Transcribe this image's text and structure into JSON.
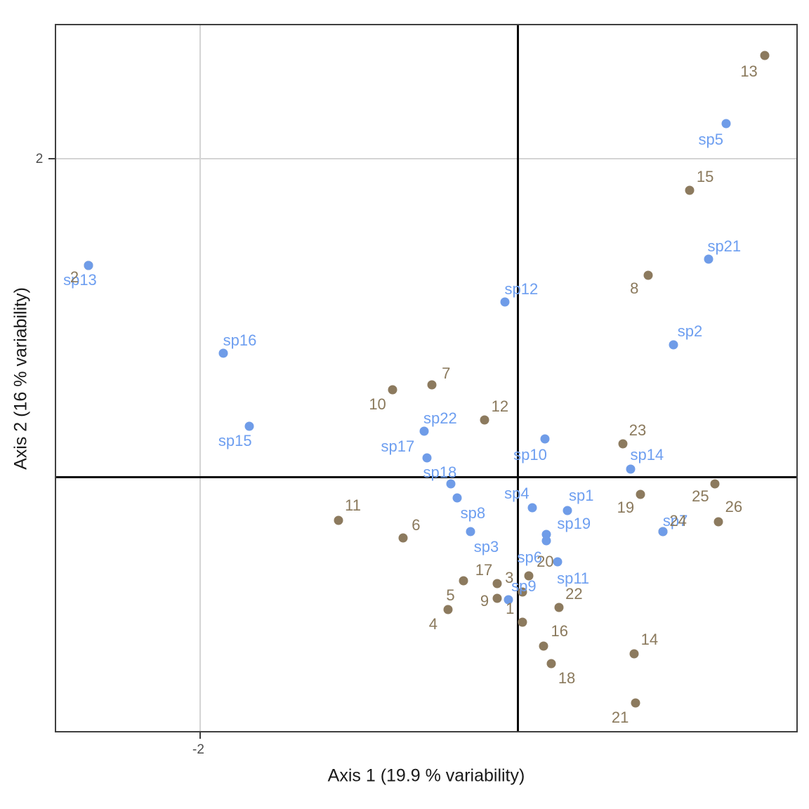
{
  "axes": {
    "x_title": "Axis 1 (19.9 % variability)",
    "y_title": "Axis 2 (16 % variability)",
    "x_ticks": [
      {
        "label": "-2",
        "value": -2
      }
    ],
    "y_ticks": [
      {
        "label": "2",
        "value": 2
      }
    ]
  },
  "colors": {
    "site": "#8C7A5E",
    "site_text": "#8A795C",
    "species": "#6F9CE8",
    "species_text": "#6D9EF0",
    "gridline": "#d4d4d4",
    "crosshair": "#0a0a0a",
    "panel_border": "#3f3f3f"
  },
  "chart_data": {
    "type": "scatter",
    "title": "",
    "xlabel": "Axis 1 (19.9 % variability)",
    "ylabel": "Axis 2 (16 % variability)",
    "xlim": [
      -2.91,
      1.76
    ],
    "ylim": [
      -1.6,
      2.85
    ],
    "grid": {
      "x_gridlines": [
        -2
      ],
      "y_gridlines": [
        2
      ],
      "origin_crosshair": true
    },
    "legend": "none",
    "series": [
      {
        "name": "sites",
        "color": "#8C7A5E",
        "points": [
          {
            "label": "1",
            "x": 0.03,
            "y": -0.91,
            "ldx": -18,
            "ldy": -19
          },
          {
            "label": "2",
            "x": -2.7,
            "y": 1.33,
            "ldx": -20,
            "ldy": 17
          },
          {
            "label": "3",
            "x": 0.03,
            "y": -0.72,
            "ldx": -19,
            "ldy": -20
          },
          {
            "label": "4",
            "x": -0.44,
            "y": -0.83,
            "ldx": -21,
            "ldy": 21
          },
          {
            "label": "5",
            "x": -0.34,
            "y": -0.65,
            "ldx": -19,
            "ldy": 21
          },
          {
            "label": "6",
            "x": -0.72,
            "y": -0.38,
            "ldx": 18,
            "ldy": -18
          },
          {
            "label": "7",
            "x": -0.54,
            "y": 0.58,
            "ldx": 20,
            "ldy": -16
          },
          {
            "label": "8",
            "x": 0.82,
            "y": 1.27,
            "ldx": -20,
            "ldy": 19
          },
          {
            "label": "9",
            "x": -0.13,
            "y": -0.76,
            "ldx": -18,
            "ldy": 4
          },
          {
            "label": "10",
            "x": -0.79,
            "y": 0.55,
            "ldx": -21,
            "ldy": 21
          },
          {
            "label": "11",
            "x": -1.13,
            "y": -0.27,
            "ldx": 21,
            "ldy": -21
          },
          {
            "label": "12",
            "x": -0.21,
            "y": 0.36,
            "ldx": 22,
            "ldy": -19
          },
          {
            "label": "13",
            "x": 1.55,
            "y": 2.65,
            "ldx": -22,
            "ldy": 23
          },
          {
            "label": "14",
            "x": 0.73,
            "y": -1.11,
            "ldx": 22,
            "ldy": -20
          },
          {
            "label": "15",
            "x": 1.08,
            "y": 1.8,
            "ldx": 22,
            "ldy": -19
          },
          {
            "label": "16",
            "x": 0.16,
            "y": -1.06,
            "ldx": 23,
            "ldy": -21
          },
          {
            "label": "17",
            "x": -0.13,
            "y": -0.67,
            "ldx": -19,
            "ldy": -19
          },
          {
            "label": "18",
            "x": 0.21,
            "y": -1.17,
            "ldx": 22,
            "ldy": 21
          },
          {
            "label": "19",
            "x": 0.77,
            "y": -0.11,
            "ldx": -21,
            "ldy": 19
          },
          {
            "label": "20",
            "x": 0.07,
            "y": -0.62,
            "ldx": 23,
            "ldy": -20
          },
          {
            "label": "21",
            "x": 0.74,
            "y": -1.42,
            "ldx": -22,
            "ldy": 21
          },
          {
            "label": "22",
            "x": 0.26,
            "y": -0.82,
            "ldx": 21,
            "ldy": -19
          },
          {
            "label": "23",
            "x": 0.66,
            "y": 0.21,
            "ldx": 21,
            "ldy": -19
          },
          {
            "label": "24",
            "x": 0.91,
            "y": -0.34,
            "ldx": 22,
            "ldy": -15
          },
          {
            "label": "25",
            "x": 1.24,
            "y": -0.04,
            "ldx": -21,
            "ldy": 18
          },
          {
            "label": "26",
            "x": 1.26,
            "y": -0.28,
            "ldx": 22,
            "ldy": -21
          }
        ]
      },
      {
        "name": "species",
        "color": "#6F9CE8",
        "points": [
          {
            "label": "sp1",
            "x": 0.31,
            "y": -0.21,
            "ldx": 20,
            "ldy": -21
          },
          {
            "label": "sp2",
            "x": 0.98,
            "y": 0.83,
            "ldx": 23,
            "ldy": -19
          },
          {
            "label": "sp3",
            "x": -0.3,
            "y": -0.34,
            "ldx": 23,
            "ldy": 22
          },
          {
            "label": "sp4",
            "x": 0.09,
            "y": -0.19,
            "ldx": -22,
            "ldy": -20
          },
          {
            "label": "sp5",
            "x": 1.31,
            "y": 2.22,
            "ldx": -22,
            "ldy": 23
          },
          {
            "label": "sp6",
            "x": 0.18,
            "y": -0.4,
            "ldx": -24,
            "ldy": 24
          },
          {
            "label": "sp7",
            "x": 0.91,
            "y": -0.34,
            "ldx": 18,
            "ldy": -15
          },
          {
            "label": "sp8",
            "x": -0.38,
            "y": -0.13,
            "ldx": 22,
            "ldy": 22
          },
          {
            "label": "sp9",
            "x": -0.06,
            "y": -0.77,
            "ldx": 22,
            "ldy": -19
          },
          {
            "label": "sp10",
            "x": 0.17,
            "y": 0.24,
            "ldx": -21,
            "ldy": 23
          },
          {
            "label": "sp11",
            "x": 0.25,
            "y": -0.53,
            "ldx": 22,
            "ldy": 24
          },
          {
            "label": "sp12",
            "x": -0.08,
            "y": 1.1,
            "ldx": 23,
            "ldy": -18
          },
          {
            "label": "sp13",
            "x": -2.7,
            "y": 1.33,
            "ldx": -12,
            "ldy": 21
          },
          {
            "label": "sp14",
            "x": 0.71,
            "y": 0.05,
            "ldx": 23,
            "ldy": -20
          },
          {
            "label": "sp15",
            "x": -1.69,
            "y": 0.32,
            "ldx": -20,
            "ldy": 21
          },
          {
            "label": "sp16",
            "x": -1.85,
            "y": 0.78,
            "ldx": 23,
            "ldy": -18
          },
          {
            "label": "sp17",
            "x": -0.57,
            "y": 0.12,
            "ldx": -42,
            "ldy": -16
          },
          {
            "label": "sp18",
            "x": -0.42,
            "y": -0.04,
            "ldx": -16,
            "ldy": -16
          },
          {
            "label": "sp19",
            "x": 0.18,
            "y": -0.36,
            "ldx": 39,
            "ldy": -15
          },
          {
            "label": "sp21",
            "x": 1.2,
            "y": 1.37,
            "ldx": 22,
            "ldy": -18
          },
          {
            "label": "sp22",
            "x": -0.59,
            "y": 0.29,
            "ldx": 23,
            "ldy": -18
          }
        ]
      }
    ]
  }
}
